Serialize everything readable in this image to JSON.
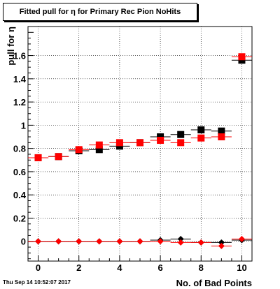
{
  "chart_data": {
    "type": "scatter",
    "title": "Fitted pull for  η for Primary Rec Pion NoHits",
    "xlabel": "No. of Bad Points",
    "ylabel": "pull for  η",
    "xlim": [
      -0.5,
      10.5
    ],
    "ylim": [
      -0.17,
      1.85
    ],
    "grid": true,
    "x_ticks": [
      0,
      2,
      4,
      6,
      8,
      10
    ],
    "y_ticks": [
      0,
      0.2,
      0.4,
      0.6,
      0.8,
      1,
      1.2,
      1.4,
      1.6
    ],
    "y_tick_labels": [
      "0",
      "0.2",
      "0.4",
      "0.6",
      "0.8",
      "1",
      "1.2",
      "1.4",
      "1.6"
    ],
    "series": [
      {
        "marker": "square",
        "color": "#000000",
        "x": [
          0,
          1,
          2,
          3,
          4,
          5,
          6,
          7,
          8,
          9,
          10
        ],
        "y": [
          0.72,
          0.73,
          0.78,
          0.79,
          0.82,
          0.85,
          0.9,
          0.92,
          0.96,
          0.95,
          1.56
        ]
      },
      {
        "marker": "square",
        "color": "#ff0000",
        "x": [
          0,
          1,
          2,
          3,
          4,
          5,
          6,
          7,
          8,
          9,
          10
        ],
        "y": [
          0.72,
          0.73,
          0.79,
          0.83,
          0.85,
          0.85,
          0.87,
          0.85,
          0.89,
          0.9,
          1.59
        ]
      },
      {
        "marker": "diamond",
        "color": "#000000",
        "x": [
          0,
          1,
          2,
          3,
          4,
          5,
          6,
          7,
          8,
          9,
          10
        ],
        "y": [
          0.0,
          0.0,
          0.0,
          0.0,
          0.0,
          0.0,
          0.01,
          0.02,
          -0.01,
          -0.01,
          0.01
        ]
      },
      {
        "marker": "diamond",
        "color": "#ff0000",
        "x": [
          0,
          1,
          2,
          3,
          4,
          5,
          6,
          7,
          8,
          9,
          10
        ],
        "y": [
          0.0,
          0.0,
          0.0,
          0.0,
          0.0,
          0.0,
          0.0,
          -0.01,
          -0.01,
          -0.04,
          0.02
        ]
      }
    ]
  },
  "footer": {
    "timestamp": "Thu Sep 14 10:52:07 2017"
  }
}
